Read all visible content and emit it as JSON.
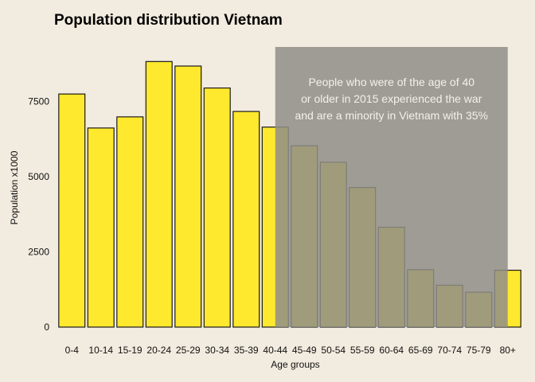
{
  "chart_data": {
    "type": "bar",
    "title": "Population distribution Vietnam",
    "xlabel": "Age groups",
    "ylabel": "Population x1000",
    "categories": [
      "0-4",
      "10-14",
      "15-19",
      "20-24",
      "25-29",
      "30-34",
      "35-39",
      "40-44",
      "45-49",
      "50-54",
      "55-59",
      "60-64",
      "65-69",
      "70-74",
      "75-79",
      "80+"
    ],
    "values": [
      7750,
      6620,
      6990,
      8830,
      8680,
      7950,
      7170,
      6650,
      6030,
      5480,
      4640,
      3320,
      1910,
      1390,
      1160,
      1890
    ],
    "ylim": [
      0,
      9500
    ],
    "yticks": [
      0,
      2500,
      5000,
      7500
    ],
    "grid": false,
    "bar_color": "#ffe92e",
    "bar_edge_color": "#1a1a1a",
    "highlight": {
      "from_category": "40-44",
      "to_category": "80+",
      "color": "#8f8e88",
      "opacity": 0.85,
      "text_lines": [
        "People who were of the age of 40",
        "or older in 2015 experienced the war",
        "and are a minority in Vietnam with 35%"
      ]
    }
  }
}
